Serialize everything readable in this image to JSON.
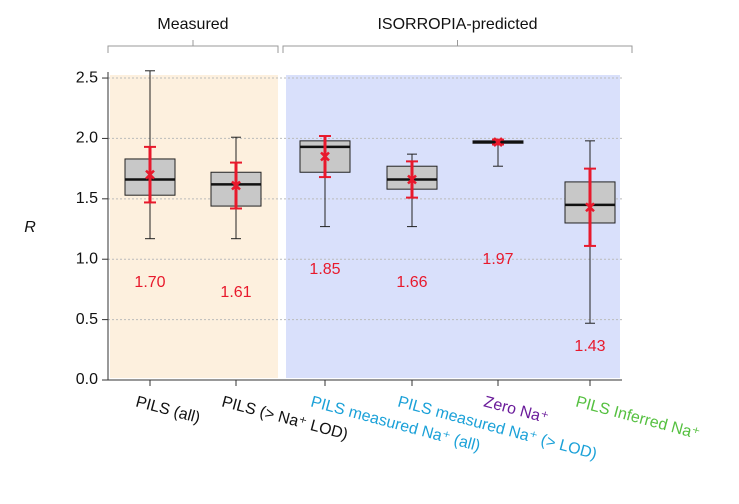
{
  "chart_data": {
    "type": "box",
    "ylabel": "R",
    "ylim": [
      0,
      2.55
    ],
    "yticks": [
      {
        "value": 0,
        "label": "0.0"
      },
      {
        "value": 0.5,
        "label": "0.5"
      },
      {
        "value": 1,
        "label": "1.0"
      },
      {
        "value": 1.5,
        "label": "1.5"
      },
      {
        "value": 2,
        "label": "2.0"
      },
      {
        "value": 2.5,
        "label": "2.5"
      }
    ],
    "grid": true,
    "box_color": "#c8c8c8",
    "mean_color": "#e8192c",
    "groups": [
      {
        "label": "Measured",
        "color": "#fdf0de",
        "categories": [
          "PILS (all)",
          "PILS (> Na⁺ LOD)"
        ],
        "category_colors": [
          "#111111",
          "#111111"
        ]
      },
      {
        "label": "ISORROPIA-predicted",
        "color": "#d9e0fb",
        "categories": [
          "PILS measured Na⁺ (all)",
          "PILS measured Na⁺ (> LOD)",
          "Zero Na⁺",
          "PILS Inferred Na⁺"
        ],
        "category_colors": [
          "#1ba1d8",
          "#1ba1d8",
          "#6a1b9a",
          "#55c040"
        ]
      }
    ],
    "whislo": [
      1.17,
      1.17,
      1.27,
      1.27,
      1.77,
      0.47
    ],
    "q1": [
      1.53,
      1.44,
      1.72,
      1.58,
      1.96,
      1.3
    ],
    "med": [
      1.66,
      1.62,
      1.93,
      1.66,
      1.97,
      1.45
    ],
    "q3": [
      1.83,
      1.72,
      1.98,
      1.77,
      1.98,
      1.64
    ],
    "whishi": [
      2.56,
      2.01,
      2.02,
      1.87,
      1.98,
      1.98
    ],
    "means": [
      1.7,
      1.61,
      1.85,
      1.66,
      1.97,
      1.43
    ],
    "mean_labels": [
      "1.70",
      "1.61",
      "1.85",
      "1.66",
      "1.97",
      "1.43"
    ],
    "errors": [
      0.23,
      0.19,
      0.17,
      0.15,
      0.02,
      0.32
    ]
  }
}
